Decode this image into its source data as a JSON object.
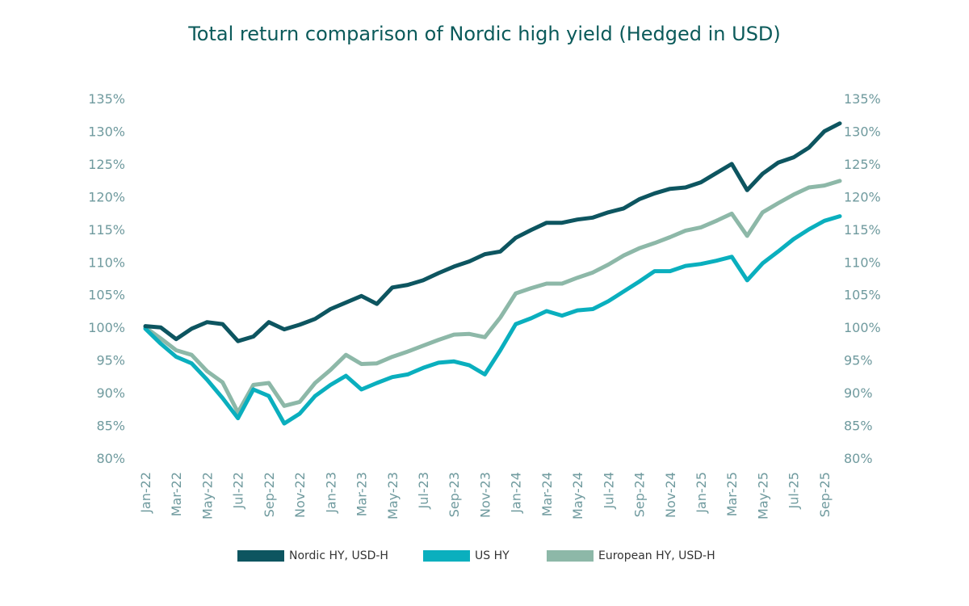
{
  "chart_data": {
    "type": "line",
    "title": "Total return comparison of Nordic high yield (Hedged in USD)",
    "y_ticks": [
      "80%",
      "85%",
      "90%",
      "95%",
      "100%",
      "105%",
      "110%",
      "115%",
      "120%",
      "125%",
      "130%",
      "135%"
    ],
    "ylim": [
      80,
      135
    ],
    "x_tick_labels": [
      "Jan-22",
      "Mar-22",
      "May-22",
      "Jul-22",
      "Sep-22",
      "Nov-22",
      "Jan-23",
      "Mar-23",
      "May-23",
      "Jul-23",
      "Sep-23",
      "Nov-23",
      "Jan-24",
      "Mar-24",
      "May-24",
      "Jul-24",
      "Sep-24",
      "Nov-24",
      "Jan-25",
      "Mar-25",
      "May-25",
      "Jul-25",
      "Sep-25"
    ],
    "x": [
      "Jan-22",
      "Feb-22",
      "Mar-22",
      "Apr-22",
      "May-22",
      "Jun-22",
      "Jul-22",
      "Aug-22",
      "Sep-22",
      "Oct-22",
      "Nov-22",
      "Dec-22",
      "Jan-23",
      "Feb-23",
      "Mar-23",
      "Apr-23",
      "May-23",
      "Jun-23",
      "Jul-23",
      "Aug-23",
      "Sep-23",
      "Oct-23",
      "Nov-23",
      "Dec-23",
      "Jan-24",
      "Feb-24",
      "Mar-24",
      "Apr-24",
      "May-24",
      "Jun-24",
      "Jul-24",
      "Aug-24",
      "Sep-24",
      "Oct-24",
      "Nov-24",
      "Dec-24",
      "Jan-25",
      "Feb-25",
      "Mar-25",
      "Apr-25",
      "May-25",
      "Jun-25",
      "Jul-25",
      "Aug-25",
      "Sep-25",
      "Oct-25"
    ],
    "grid": false,
    "secondary_y_axis": true,
    "legend_position": "bottom-center",
    "series": [
      {
        "name": "Nordic HY, USD-H",
        "color": "#0d5560",
        "values": [
          100.2,
          100.0,
          98.2,
          99.8,
          100.8,
          100.5,
          97.9,
          98.6,
          100.8,
          99.7,
          100.4,
          101.3,
          102.8,
          103.8,
          104.8,
          103.6,
          106.1,
          106.5,
          107.2,
          108.3,
          109.3,
          110.1,
          111.2,
          111.6,
          113.7,
          114.9,
          116.0,
          116.0,
          116.5,
          116.8,
          117.6,
          118.2,
          119.6,
          120.5,
          121.2,
          121.4,
          122.2,
          123.6,
          125.0,
          121.0,
          123.5,
          125.2,
          126.0,
          127.5,
          130.0,
          131.2
        ]
      },
      {
        "name": "US HY",
        "color": "#0aafbe",
        "values": [
          99.8,
          97.5,
          95.5,
          94.5,
          92.0,
          89.2,
          86.1,
          90.5,
          89.5,
          85.3,
          86.8,
          89.5,
          91.2,
          92.6,
          90.5,
          91.5,
          92.4,
          92.8,
          93.8,
          94.6,
          94.8,
          94.2,
          92.8,
          96.5,
          100.5,
          101.4,
          102.5,
          101.8,
          102.6,
          102.8,
          104.0,
          105.5,
          107.0,
          108.6,
          108.6,
          109.4,
          109.7,
          110.2,
          110.8,
          107.2,
          109.8,
          111.6,
          113.5,
          115.0,
          116.3,
          117.0
        ]
      },
      {
        "name": "European HY, USD-H",
        "color": "#8db8a8",
        "values": [
          100.0,
          98.3,
          96.5,
          95.8,
          93.3,
          91.6,
          87.0,
          91.2,
          91.5,
          88.0,
          88.6,
          91.5,
          93.5,
          95.8,
          94.4,
          94.5,
          95.5,
          96.3,
          97.2,
          98.1,
          98.9,
          99.0,
          98.5,
          101.5,
          105.2,
          106.0,
          106.7,
          106.7,
          107.6,
          108.4,
          109.6,
          111.0,
          112.1,
          112.9,
          113.8,
          114.8,
          115.3,
          116.3,
          117.4,
          114.0,
          117.6,
          119.0,
          120.3,
          121.4,
          121.7,
          122.4
        ]
      }
    ]
  }
}
